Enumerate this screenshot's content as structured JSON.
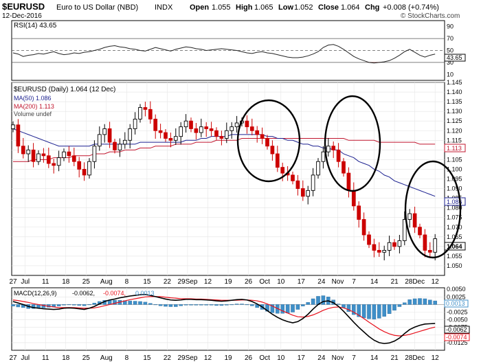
{
  "header": {
    "symbol": "$EURUSD",
    "name": "Euro to US Dollar (NBD)",
    "exchange": "INDX",
    "date": "12-Dec-2016",
    "open_label": "Open",
    "open": "1.055",
    "high_label": "High",
    "high": "1.065",
    "low_label": "Low",
    "low": "1.052",
    "close_label": "Close",
    "close": "1.064",
    "chg_label": "Chg",
    "chg": "+0.008 (+0.74%)",
    "brand": "© StockCharts.com"
  },
  "rsi_panel": {
    "label": "RSI(14) 43.65",
    "ticks": [
      90,
      70,
      50,
      30,
      10
    ],
    "value_tag": "43.65"
  },
  "price_panel": {
    "label": "$EURUSD (Daily) 1.064 (12 Dec)",
    "legend": [
      {
        "text": "MA(50) 1.086",
        "color": "#1a1f8f"
      },
      {
        "text": "MA(200) 1.113",
        "color": "#c0142c"
      },
      {
        "text": "Volume undef",
        "color": "#444444"
      }
    ],
    "tags": {
      "ma200": "1.113",
      "ma50": "1.086",
      "last": "1.064"
    }
  },
  "macd_panel": {
    "label_prefix": "MACD(12,26,9)",
    "macd": "-0.0062,",
    "signal": "-0.0074,",
    "hist": "0.0013",
    "tags": {
      "hist": "0.0013",
      "macd": "-0.0062",
      "signal": "-0.0074"
    }
  },
  "x_axis": [
    "27",
    "Jul",
    "11",
    "18",
    "25",
    "Aug",
    "8",
    "15",
    "22",
    "29Sep",
    "12",
    "19",
    "26",
    "Oct",
    "10",
    "17",
    "24",
    "Nov",
    "7",
    "14",
    "21",
    "28Dec",
    "12"
  ],
  "chart_data": [
    {
      "type": "line",
      "name": "RSI(14)",
      "ylim": [
        0,
        100
      ],
      "reference_lines": [
        70,
        50,
        30
      ],
      "series": [
        {
          "name": "RSI(14)",
          "color": "#222222",
          "values": [
            46,
            44,
            40,
            42,
            43,
            45,
            44,
            46,
            48,
            45,
            43,
            44,
            46,
            45,
            47,
            48,
            50,
            52,
            55,
            57,
            58,
            56,
            55,
            53,
            52,
            50,
            49,
            52,
            55,
            53,
            51,
            49,
            52,
            54,
            56,
            55,
            53,
            52,
            50,
            51,
            52,
            53,
            52,
            51,
            50,
            48,
            46,
            45,
            47,
            48,
            46,
            45,
            43,
            41,
            39,
            38,
            38,
            39,
            41,
            44,
            48,
            55,
            59,
            60,
            57,
            52,
            46,
            40,
            36,
            33,
            30,
            29,
            30,
            31,
            33,
            37,
            42,
            48,
            52,
            47,
            42,
            39,
            42,
            44
          ]
        }
      ]
    },
    {
      "type": "candlestick",
      "name": "$EURUSD (Daily)",
      "ylim": [
        1.045,
        1.145
      ],
      "y_ticks": [
        1.05,
        1.055,
        1.06,
        1.065,
        1.07,
        1.075,
        1.08,
        1.085,
        1.09,
        1.095,
        1.1,
        1.105,
        1.11,
        1.115,
        1.12,
        1.125,
        1.13,
        1.135,
        1.14,
        1.145
      ],
      "close": [
        1.123,
        1.112,
        1.108,
        1.11,
        1.104,
        1.108,
        1.107,
        1.103,
        1.102,
        1.106,
        1.109,
        1.107,
        1.104,
        1.1,
        1.097,
        1.104,
        1.112,
        1.118,
        1.121,
        1.114,
        1.11,
        1.113,
        1.115,
        1.121,
        1.126,
        1.132,
        1.131,
        1.126,
        1.12,
        1.119,
        1.116,
        1.115,
        1.117,
        1.122,
        1.125,
        1.121,
        1.119,
        1.122,
        1.121,
        1.12,
        1.117,
        1.116,
        1.12,
        1.122,
        1.124,
        1.125,
        1.122,
        1.12,
        1.118,
        1.116,
        1.112,
        1.108,
        1.101,
        1.098,
        1.097,
        1.094,
        1.09,
        1.086,
        1.089,
        1.097,
        1.104,
        1.109,
        1.112,
        1.11,
        1.104,
        1.098,
        1.089,
        1.081,
        1.074,
        1.066,
        1.061,
        1.058,
        1.057,
        1.058,
        1.062,
        1.06,
        1.063,
        1.074,
        1.077,
        1.07,
        1.066,
        1.058,
        1.057,
        1.064
      ],
      "ma50": [
        1.121,
        1.12,
        1.119,
        1.118,
        1.117,
        1.116,
        1.115,
        1.114,
        1.113,
        1.112,
        1.112,
        1.112,
        1.112,
        1.112,
        1.112,
        1.112,
        1.113,
        1.113,
        1.113,
        1.113,
        1.113,
        1.113,
        1.113,
        1.113,
        1.113,
        1.114,
        1.114,
        1.114,
        1.114,
        1.114,
        1.114,
        1.114,
        1.114,
        1.114,
        1.115,
        1.115,
        1.115,
        1.116,
        1.116,
        1.117,
        1.117,
        1.117,
        1.117,
        1.118,
        1.118,
        1.118,
        1.118,
        1.118,
        1.118,
        1.118,
        1.117,
        1.117,
        1.116,
        1.116,
        1.115,
        1.115,
        1.114,
        1.113,
        1.113,
        1.112,
        1.112,
        1.111,
        1.111,
        1.11,
        1.11,
        1.108,
        1.107,
        1.106,
        1.104,
        1.103,
        1.102,
        1.1,
        1.099,
        1.097,
        1.096,
        1.094,
        1.093,
        1.092,
        1.091,
        1.09,
        1.089,
        1.088,
        1.087,
        1.086
      ],
      "ma200": [
        1.104,
        1.104,
        1.104,
        1.104,
        1.105,
        1.105,
        1.105,
        1.105,
        1.106,
        1.106,
        1.106,
        1.106,
        1.107,
        1.107,
        1.107,
        1.107,
        1.108,
        1.108,
        1.108,
        1.109,
        1.109,
        1.109,
        1.11,
        1.11,
        1.11,
        1.111,
        1.111,
        1.111,
        1.112,
        1.112,
        1.112,
        1.112,
        1.113,
        1.113,
        1.113,
        1.113,
        1.114,
        1.114,
        1.114,
        1.114,
        1.115,
        1.115,
        1.115,
        1.115,
        1.115,
        1.116,
        1.116,
        1.116,
        1.116,
        1.116,
        1.116,
        1.116,
        1.116,
        1.116,
        1.116,
        1.116,
        1.116,
        1.116,
        1.116,
        1.116,
        1.116,
        1.116,
        1.116,
        1.116,
        1.116,
        1.116,
        1.115,
        1.115,
        1.115,
        1.115,
        1.115,
        1.115,
        1.114,
        1.114,
        1.114,
        1.114,
        1.114,
        1.114,
        1.114,
        1.114,
        1.113,
        1.113,
        1.113,
        1.113
      ]
    },
    {
      "type": "line",
      "name": "MACD(12,26,9)",
      "ylim": [
        -0.015,
        0.0055
      ],
      "y_ticks": [
        0.005,
        0.0025,
        0.0,
        -0.0025,
        -0.005,
        -0.0075,
        -0.01,
        -0.0125
      ],
      "series": [
        {
          "name": "MACD",
          "color": "#000000",
          "values": [
            0.001,
            0.0005,
            0.0,
            -0.0006,
            -0.001,
            -0.0012,
            -0.0014,
            -0.0015,
            -0.0016,
            -0.0015,
            -0.0012,
            -0.0011,
            -0.0012,
            -0.0014,
            -0.0016,
            -0.0012,
            -0.0006,
            0.0002,
            0.001,
            0.0015,
            0.0018,
            0.0022,
            0.0025,
            0.0028,
            0.003,
            0.0032,
            0.0033,
            0.003,
            0.0026,
            0.0022,
            0.0018,
            0.0015,
            0.0014,
            0.0015,
            0.0017,
            0.0017,
            0.0016,
            0.0016,
            0.0015,
            0.0014,
            0.0012,
            0.0011,
            0.0012,
            0.0014,
            0.0016,
            0.0017,
            0.0015,
            0.001,
            0.0002,
            -0.0008,
            -0.002,
            -0.0032,
            -0.0042,
            -0.005,
            -0.0056,
            -0.006,
            -0.0056,
            -0.0046,
            -0.0032,
            -0.0015,
            0.0,
            0.001,
            0.0012,
            0.0006,
            -0.0006,
            -0.0022,
            -0.004,
            -0.0058,
            -0.0075,
            -0.009,
            -0.0105,
            -0.0117,
            -0.0125,
            -0.0128,
            -0.0126,
            -0.012,
            -0.011,
            -0.0095,
            -0.0082,
            -0.0074,
            -0.0068,
            -0.0064,
            -0.0063,
            -0.0062
          ]
        },
        {
          "name": "Signal",
          "color": "#e8111c",
          "values": [
            0.0015,
            0.0013,
            0.001,
            0.0007,
            0.0003,
            0.0,
            -0.0003,
            -0.0006,
            -0.0008,
            -0.001,
            -0.001,
            -0.001,
            -0.001,
            -0.0011,
            -0.0012,
            -0.0012,
            -0.0011,
            -0.0008,
            -0.0004,
            0.0,
            0.0004,
            0.0008,
            0.0012,
            0.0016,
            0.0019,
            0.0022,
            0.0025,
            0.0026,
            0.0026,
            0.0026,
            0.0024,
            0.0022,
            0.0021,
            0.0019,
            0.0019,
            0.0019,
            0.0018,
            0.0018,
            0.0017,
            0.0016,
            0.0015,
            0.0014,
            0.0014,
            0.0014,
            0.0014,
            0.0015,
            0.0015,
            0.0014,
            0.0012,
            0.0008,
            0.0002,
            -0.0005,
            -0.0013,
            -0.0021,
            -0.0028,
            -0.0035,
            -0.004,
            -0.0041,
            -0.0039,
            -0.0034,
            -0.0027,
            -0.0019,
            -0.0013,
            -0.0009,
            -0.0008,
            -0.0011,
            -0.0017,
            -0.0025,
            -0.0035,
            -0.0046,
            -0.0058,
            -0.0069,
            -0.008,
            -0.0089,
            -0.0096,
            -0.0101,
            -0.0103,
            -0.0101,
            -0.0098,
            -0.0093,
            -0.0088,
            -0.0083,
            -0.0078,
            -0.0074
          ]
        }
      ],
      "histogram_color": "#3f8fc8"
    }
  ]
}
